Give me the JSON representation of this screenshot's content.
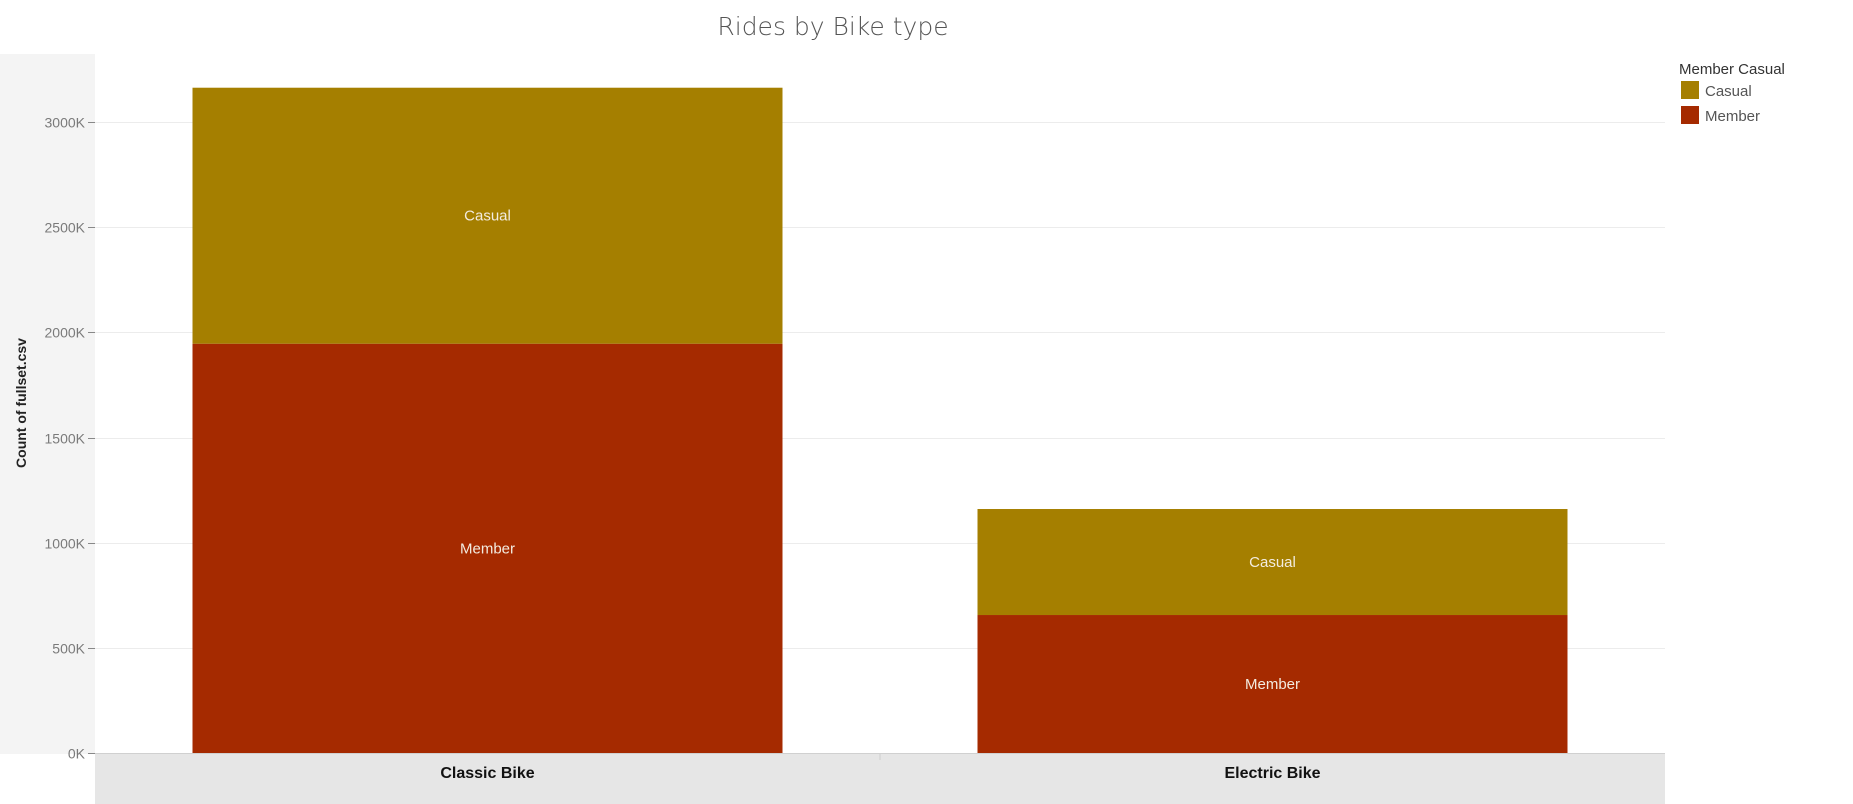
{
  "chart_data": {
    "type": "bar",
    "stacked": true,
    "title": "Rides by Bike type",
    "xlabel": "",
    "ylabel": "Count of fullset.csv",
    "categories": [
      "Classic Bike",
      "Electric Bike"
    ],
    "series": [
      {
        "name": "Member",
        "color": "#a52a00",
        "values": [
          1946000,
          656000
        ],
        "segment_label": "Member"
      },
      {
        "name": "Casual",
        "color": "#a57f00",
        "values": [
          1217000,
          504000
        ],
        "segment_label": "Casual"
      }
    ],
    "yticks": [
      0,
      500000,
      1000000,
      1500000,
      2000000,
      2500000,
      3000000
    ],
    "ytick_labels": [
      "0K",
      "500K",
      "1000K",
      "1500K",
      "2000K",
      "2500K",
      "3000K"
    ],
    "ylim": [
      0,
      3000000
    ],
    "grid": true,
    "legend": {
      "title": "Member Casual",
      "placement": "top-right",
      "items": [
        {
          "label": "Casual",
          "color": "#a57f00"
        },
        {
          "label": "Member",
          "color": "#a52a00"
        }
      ]
    }
  }
}
